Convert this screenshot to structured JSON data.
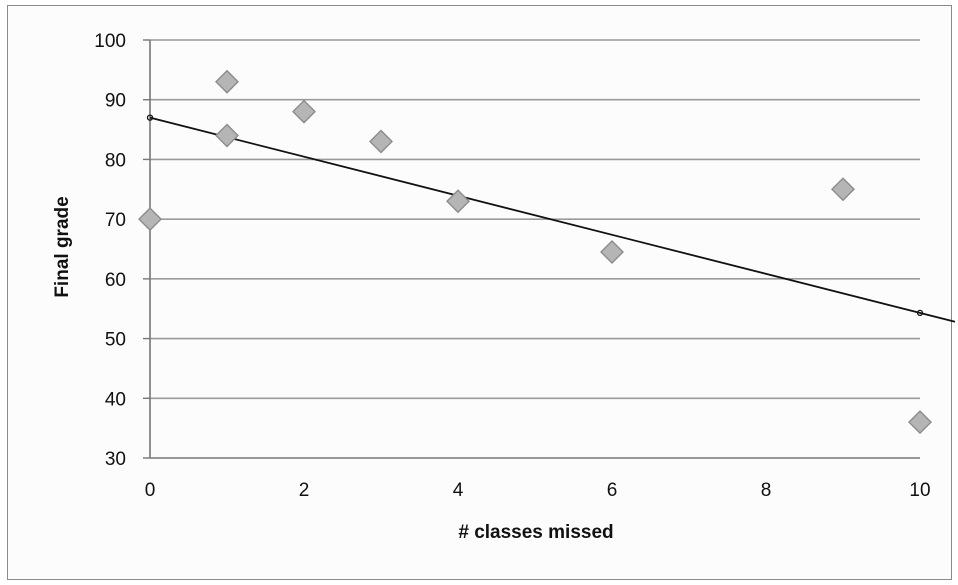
{
  "chart_data": {
    "type": "scatter",
    "title": "",
    "xlabel": "# classes missed",
    "ylabel": "Final grade",
    "xlim": [
      0,
      10
    ],
    "ylim": [
      30,
      100
    ],
    "x_ticks": [
      0,
      2,
      4,
      6,
      8,
      10
    ],
    "y_ticks": [
      30,
      40,
      50,
      60,
      70,
      80,
      90,
      100
    ],
    "grid": "horizontal",
    "legend": "none",
    "points": {
      "x": [
        0,
        1,
        1,
        2,
        3,
        4,
        6,
        9,
        10
      ],
      "y": [
        70,
        93,
        84,
        88,
        83,
        73,
        64.5,
        75,
        36
      ]
    },
    "trendline": {
      "type": "linear",
      "x": [
        0,
        10
      ],
      "y": [
        87,
        54.3
      ]
    },
    "colors": {
      "marker_fill": "#b5b5b5",
      "marker_stroke": "#8c8c8c",
      "trendline": "#111111",
      "gridline": "#9a9a9a"
    }
  }
}
